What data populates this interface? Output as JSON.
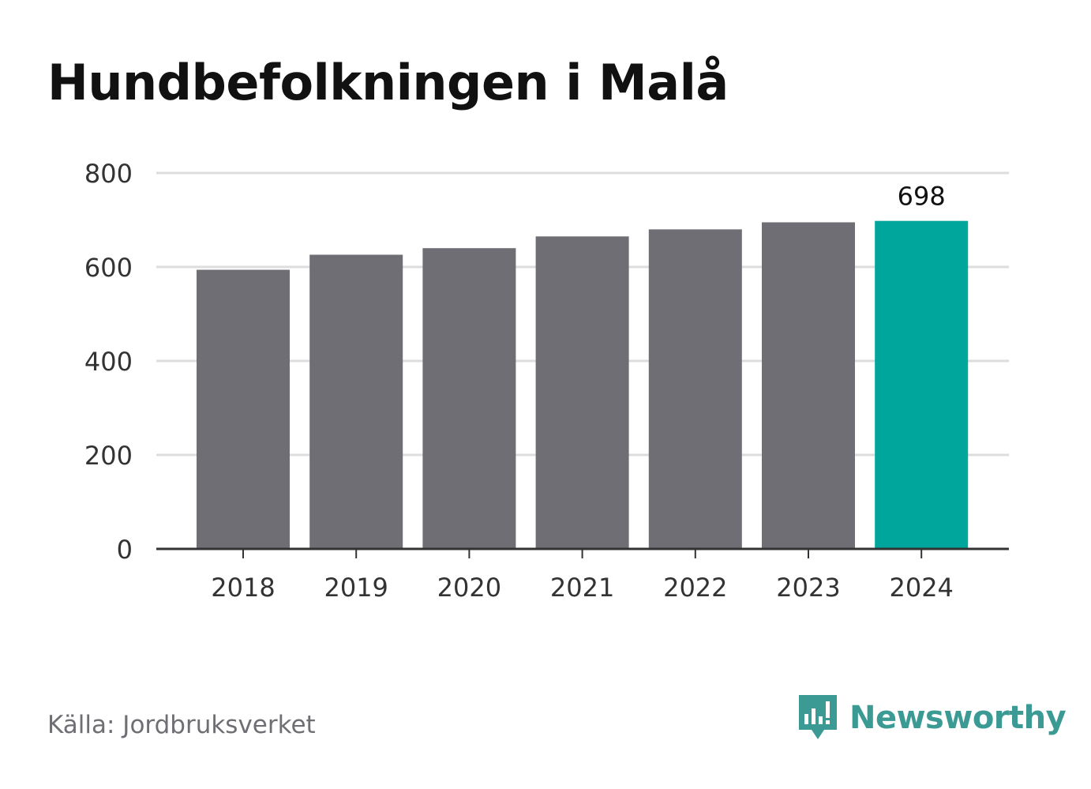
{
  "title": "Hundbefolkningen i Malå",
  "source": "Källa: Jordbruksverket",
  "brand": {
    "name": "Newsworthy",
    "icon": "newsworthy-logo-icon"
  },
  "colors": {
    "bar": "#6f6e75",
    "highlight": "#00a69b",
    "grid": "#dddddd",
    "axis": "#333333",
    "brand": "#3b9a93"
  },
  "chart_data": {
    "type": "bar",
    "categories": [
      "2018",
      "2019",
      "2020",
      "2021",
      "2022",
      "2023",
      "2024"
    ],
    "values": [
      594,
      626,
      640,
      665,
      680,
      695,
      698
    ],
    "highlight_index": 6,
    "data_labels": [
      {
        "index": 6,
        "text": "698"
      }
    ],
    "yticks": [
      0,
      200,
      400,
      600,
      800
    ],
    "ylim": [
      0,
      800
    ],
    "grid": true,
    "title": "",
    "xlabel": "",
    "ylabel": ""
  }
}
